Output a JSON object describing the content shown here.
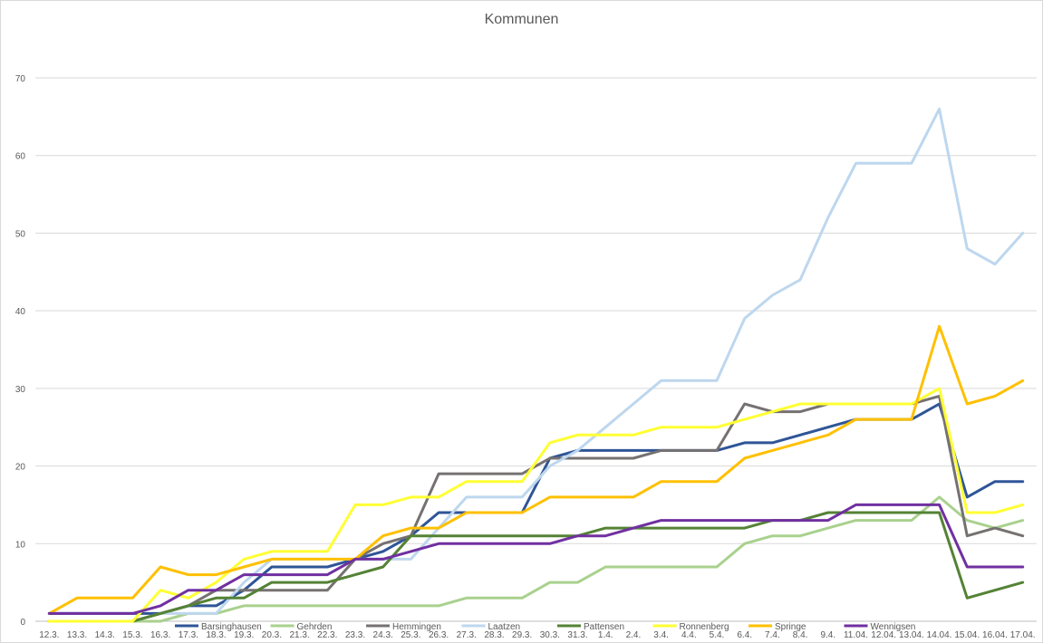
{
  "chart_data": {
    "type": "line",
    "title": "Kommunen",
    "xlabel": "",
    "ylabel": "",
    "ylim": [
      0,
      70
    ],
    "yticks": [
      0,
      10,
      20,
      30,
      40,
      50,
      60,
      70
    ],
    "grid": "horizontal",
    "legend_position": "bottom",
    "categories": [
      "12.3.",
      "13.3.",
      "14.3.",
      "15.3.",
      "16.3.",
      "17.3.",
      "18.3.",
      "19.3.",
      "20.3.",
      "21.3.",
      "22.3.",
      "23.3.",
      "24.3.",
      "25.3.",
      "26.3.",
      "27.3.",
      "28.3.",
      "29.3.",
      "30.3.",
      "31.3.",
      "1.4.",
      "2.4.",
      "3.4.",
      "4.4.",
      "5.4.",
      "6.4.",
      "7.4.",
      "8.4.",
      "9.4.",
      "11.04.",
      "12.04.",
      "13.04.",
      "14.04.",
      "15.04.",
      "16.04.",
      "17.04."
    ],
    "series": [
      {
        "name": "Barsinghausen",
        "color": "#2f5597",
        "values": [
          1,
          1,
          1,
          1,
          1,
          2,
          2,
          4,
          7,
          7,
          7,
          8,
          9,
          11,
          14,
          14,
          14,
          14,
          21,
          22,
          22,
          22,
          22,
          22,
          22,
          23,
          23,
          24,
          25,
          26,
          26,
          26,
          28,
          16,
          18,
          18
        ]
      },
      {
        "name": "Gehrden",
        "color": "#a9d18e",
        "values": [
          0,
          0,
          0,
          0,
          0,
          1,
          1,
          2,
          2,
          2,
          2,
          2,
          2,
          2,
          2,
          3,
          3,
          3,
          5,
          5,
          7,
          7,
          7,
          7,
          7,
          10,
          11,
          11,
          12,
          13,
          13,
          13,
          16,
          13,
          12,
          13
        ]
      },
      {
        "name": "Hemmingen",
        "color": "#767171",
        "values": [
          0,
          0,
          0,
          0,
          1,
          2,
          4,
          4,
          4,
          4,
          4,
          8,
          10,
          11,
          19,
          19,
          19,
          19,
          21,
          21,
          21,
          21,
          22,
          22,
          22,
          28,
          27,
          27,
          28,
          28,
          28,
          28,
          29,
          11,
          12,
          11
        ]
      },
      {
        "name": "Laatzen",
        "color": "#bdd7ee",
        "values": [
          0,
          0,
          0,
          0,
          1,
          1,
          1,
          5,
          8,
          8,
          8,
          8,
          8,
          8,
          12,
          16,
          16,
          16,
          20,
          22,
          25,
          28,
          31,
          31,
          31,
          39,
          42,
          44,
          52,
          59,
          59,
          59,
          66,
          48,
          46,
          50
        ]
      },
      {
        "name": "Pattensen",
        "color": "#548235",
        "values": [
          0,
          0,
          0,
          0,
          1,
          2,
          3,
          3,
          5,
          5,
          5,
          6,
          7,
          11,
          11,
          11,
          11,
          11,
          11,
          11,
          12,
          12,
          12,
          12,
          12,
          12,
          13,
          13,
          14,
          14,
          14,
          14,
          14,
          3,
          4,
          5
        ]
      },
      {
        "name": "Ronnenberg",
        "color": "#ffff33",
        "values": [
          0,
          0,
          0,
          0,
          4,
          3,
          5,
          8,
          9,
          9,
          9,
          15,
          15,
          16,
          16,
          18,
          18,
          18,
          23,
          24,
          24,
          24,
          25,
          25,
          25,
          26,
          27,
          28,
          28,
          28,
          28,
          28,
          30,
          14,
          14,
          15
        ]
      },
      {
        "name": "Springe",
        "color": "#ffc000",
        "values": [
          1,
          3,
          3,
          3,
          7,
          6,
          6,
          7,
          8,
          8,
          8,
          8,
          11,
          12,
          12,
          14,
          14,
          14,
          16,
          16,
          16,
          16,
          18,
          18,
          18,
          21,
          22,
          23,
          24,
          26,
          26,
          26,
          38,
          28,
          29,
          31
        ]
      },
      {
        "name": "Wennigsen",
        "color": "#7030a0",
        "values": [
          1,
          1,
          1,
          1,
          2,
          4,
          4,
          6,
          6,
          6,
          6,
          8,
          8,
          9,
          10,
          10,
          10,
          10,
          10,
          11,
          11,
          12,
          13,
          13,
          13,
          13,
          13,
          13,
          13,
          15,
          15,
          15,
          15,
          7,
          7,
          7
        ]
      }
    ]
  }
}
